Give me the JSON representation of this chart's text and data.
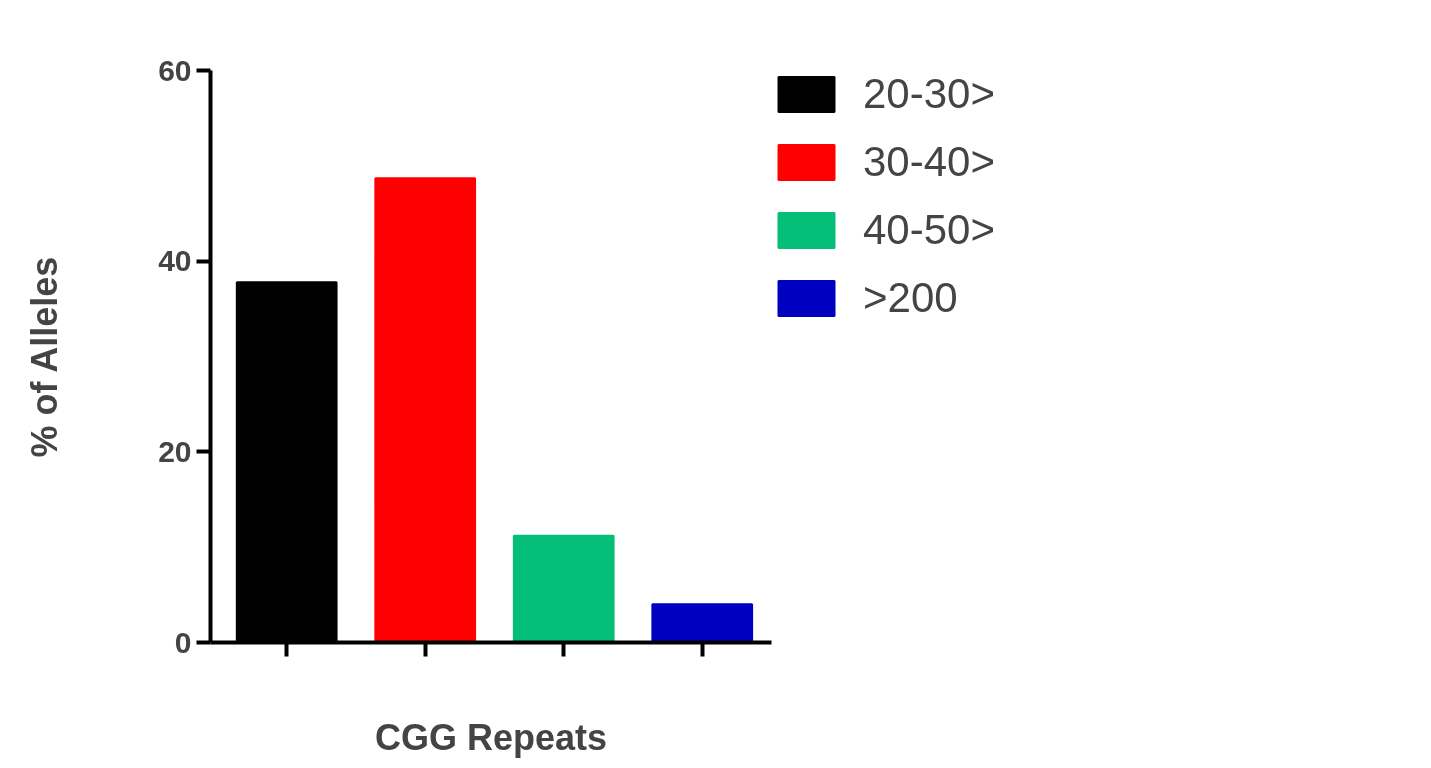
{
  "chart_data": {
    "type": "bar",
    "xlabel": "CGG Repeats",
    "ylabel": "% of Alleles",
    "categories": [
      null,
      null,
      null,
      null
    ],
    "series": [
      {
        "name": "20-30>",
        "color": "#000000",
        "values": [
          37.8,
          null,
          null,
          null
        ]
      },
      {
        "name": "30-40>",
        "color": "#ff0000",
        "values": [
          null,
          48.7,
          null,
          null
        ]
      },
      {
        "name": "40-50>",
        "color": "#05be78",
        "values": [
          null,
          null,
          11.2,
          null
        ]
      },
      {
        "name": ">200",
        "color": "#0000c0",
        "values": [
          null,
          null,
          null,
          4
        ]
      }
    ],
    "ylim": [
      0,
      60
    ],
    "yticks": [
      0,
      20,
      40,
      60
    ],
    "grid": false,
    "legend": "right",
    "tick_labels": "y"
  }
}
